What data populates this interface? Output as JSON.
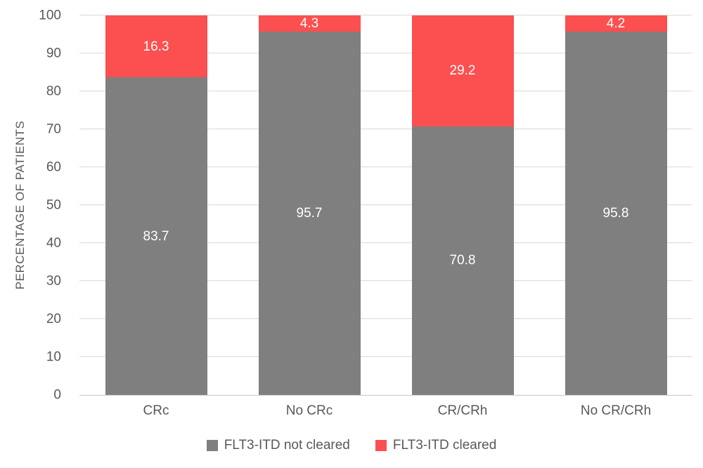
{
  "chart_data": {
    "type": "bar",
    "stacked": true,
    "categories": [
      "CRc",
      "No CRc",
      "CR/CRh",
      "No CR/CRh"
    ],
    "series": [
      {
        "name": "FLT3-ITD not cleared",
        "color": "#7F7F7F",
        "values": [
          83.7,
          95.7,
          70.8,
          95.8
        ]
      },
      {
        "name": "FLT3-ITD cleared",
        "color": "#FC4F4F",
        "values": [
          16.3,
          4.3,
          29.2,
          4.2
        ]
      }
    ],
    "ylabel": "PERCENTAGE OF PATIENTS",
    "ylim": [
      0,
      100
    ],
    "yticks": [
      0,
      10,
      20,
      30,
      40,
      50,
      60,
      70,
      80,
      90,
      100
    ],
    "grid": true,
    "legend_position": "bottom",
    "data_labels": true
  },
  "colors": {
    "axis_text": "#595959",
    "gridline": "#D9D9D9",
    "axis_line": "#C9C9C9",
    "data_label": "#FFFFFF",
    "background": "#FFFFFF"
  }
}
